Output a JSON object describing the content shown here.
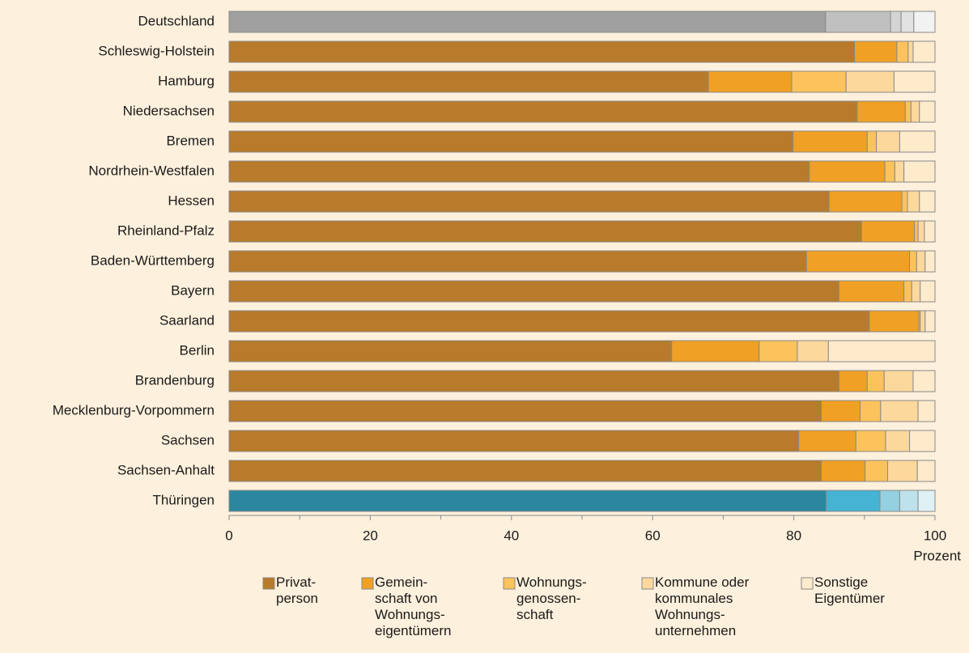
{
  "chart_data": {
    "type": "stacked_barh",
    "categories": [
      "Deutschland",
      "Schleswig-Holstein",
      "Hamburg",
      "Niedersachsen",
      "Bremen",
      "Nordrhein-Westfalen",
      "Hessen",
      "Rheinland-Pfalz",
      "Baden-Württemberg",
      "Bayern",
      "Saarland",
      "Berlin",
      "Brandenburg",
      "Mecklenburg-Vorpommern",
      "Sachsen",
      "Sachsen-Anhalt",
      "Thüringen"
    ],
    "series": [
      {
        "name": "Privat-\nperson",
        "color": "#b87a2b",
        "values": [
          84.5,
          88.6,
          67.9,
          89.0,
          79.9,
          82.2,
          85.0,
          89.6,
          81.8,
          86.4,
          90.7,
          62.7,
          86.4,
          83.9,
          80.7,
          83.9,
          84.6
        ]
      },
      {
        "name": "Gemein-\nschaft von\nWohnungs-\neigentümern",
        "color": "#f0a024",
        "values": [
          9.2,
          6.0,
          11.8,
          6.8,
          10.5,
          10.7,
          10.3,
          7.5,
          14.6,
          9.2,
          7.0,
          12.4,
          4.0,
          5.5,
          8.1,
          6.2,
          7.6
        ]
      },
      {
        "name": "Wohnungs-\ngenossen-\nschaft",
        "color": "#fcc35c",
        "values": [
          1.5,
          1.6,
          7.7,
          0.8,
          1.3,
          1.4,
          0.8,
          0.5,
          1.0,
          1.1,
          0.2,
          5.4,
          2.4,
          2.9,
          4.2,
          3.2,
          2.8
        ]
      },
      {
        "name": "Kommune oder\nkommunales\nWohnungs-\nunternehmen",
        "color": "#fcd89c",
        "values": [
          1.8,
          0.7,
          6.8,
          1.2,
          3.3,
          1.3,
          1.7,
          0.9,
          1.2,
          1.2,
          0.7,
          4.4,
          4.1,
          5.3,
          3.4,
          4.2,
          2.6
        ]
      },
      {
        "name": "Sonstige\nEigentümer",
        "color": "#fdebcc",
        "values": [
          3.0,
          3.1,
          5.8,
          2.2,
          5.0,
          4.4,
          2.2,
          1.5,
          1.4,
          2.1,
          1.4,
          15.1,
          3.1,
          2.4,
          3.6,
          2.5,
          2.4
        ]
      }
    ],
    "row_colors": {
      "Deutschland": [
        "#a0a0a0",
        "#c0c0c0",
        "#d4d4d4",
        "#e2e2e2",
        "#f2f2f2"
      ],
      "Thüringen": [
        "#2b879e",
        "#45b3d3",
        "#94d0e0",
        "#bde2ec",
        "#e0f1f6"
      ]
    },
    "xlim": [
      0,
      100
    ],
    "xticks": [
      0,
      20,
      40,
      60,
      80,
      100
    ],
    "xlabel": "Prozent"
  }
}
